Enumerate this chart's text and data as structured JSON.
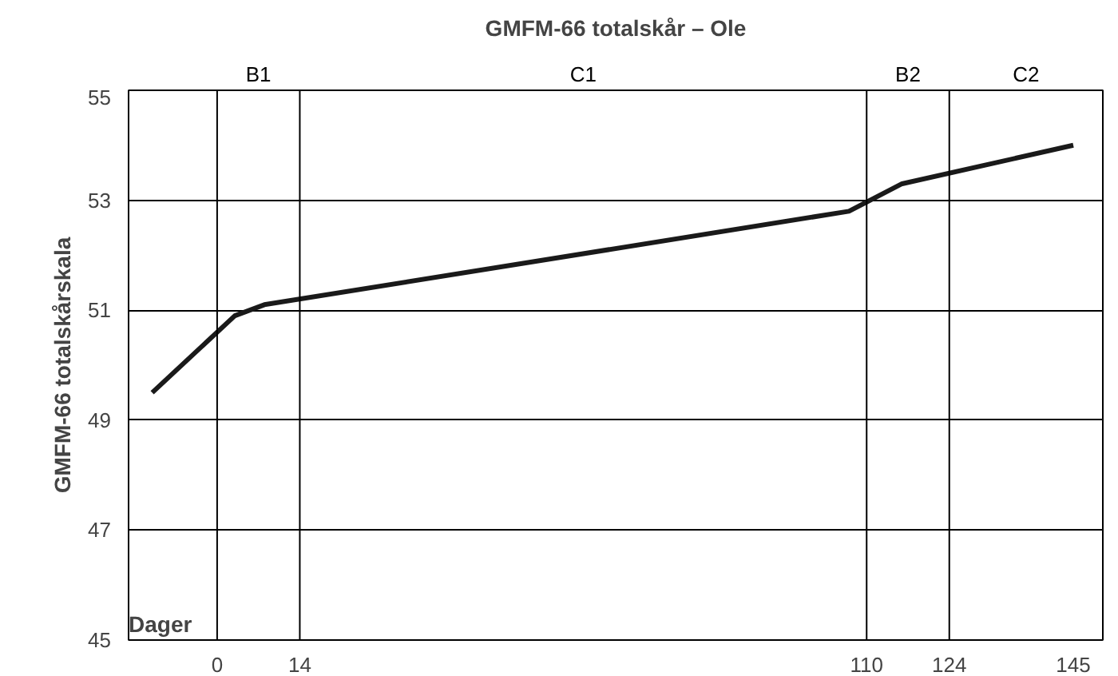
{
  "chart_data": {
    "type": "line",
    "title": "GMFM-66 totalskår – Ole",
    "xlabel": "Dager",
    "ylabel": "GMFM-66 totalskårskala",
    "x": [
      -11,
      3,
      8,
      107,
      116,
      145
    ],
    "series": [
      {
        "color": "#1a1a1a",
        "values": [
          49.5,
          50.9,
          51.1,
          52.8,
          53.3,
          54.0
        ]
      }
    ],
    "xlim": [
      -15,
      150
    ],
    "xticks": [
      0,
      14,
      110,
      124,
      145
    ],
    "ylim": [
      45,
      55
    ],
    "yticks": [
      45,
      47,
      49,
      51,
      53,
      55
    ],
    "grid": "y",
    "marker": "none",
    "line_style": "solid",
    "ref_lines": [
      {
        "axis": "x",
        "value": 0,
        "color": "#000000"
      },
      {
        "axis": "x",
        "value": 14,
        "color": "#000000"
      },
      {
        "axis": "x",
        "value": 110,
        "color": "#000000"
      },
      {
        "axis": "x",
        "value": 124,
        "color": "#000000"
      }
    ],
    "annotations": [
      "B1",
      "C1",
      "B2",
      "C2"
    ]
  }
}
